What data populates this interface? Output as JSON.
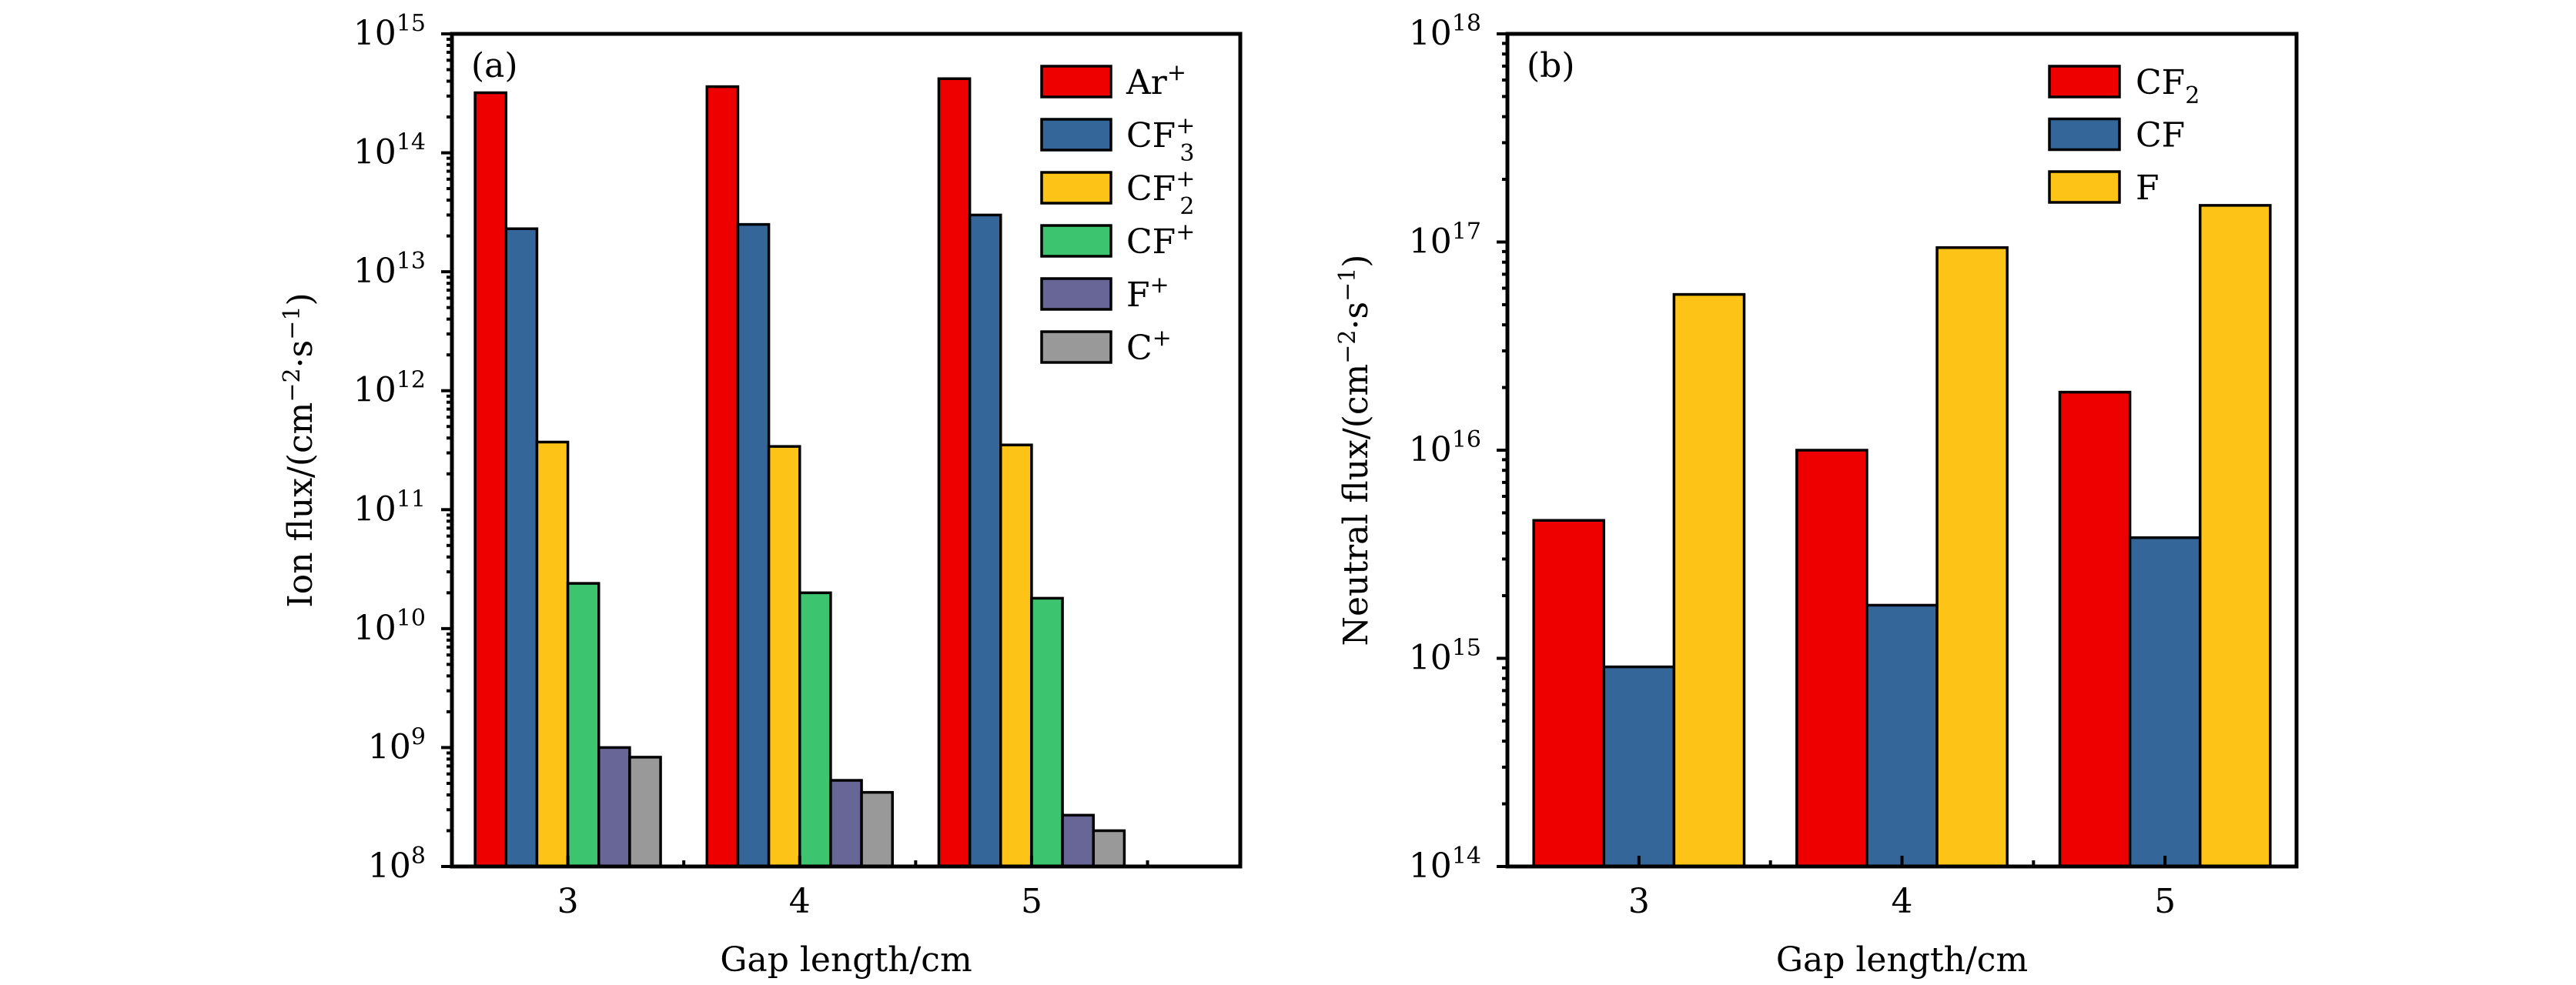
{
  "figure": {
    "panels": [
      "(a)",
      "(b)"
    ]
  },
  "chart_data": [
    {
      "type": "bar",
      "panel_tag": "(a)",
      "title": "",
      "xlabel": "Gap length/cm",
      "ylabel": "Ion flux/(cm⁻²·s⁻¹)",
      "ylabel_parts": {
        "main": "Ion flux/(cm",
        "exp1": "−2",
        "mid": "·s",
        "exp2": "−1",
        "end": ")"
      },
      "yscale": "log",
      "ylim": [
        100000000.0,
        1000000000000000.0
      ],
      "yticks": [
        {
          "base": "10",
          "exp": "8"
        },
        {
          "base": "10",
          "exp": "9"
        },
        {
          "base": "10",
          "exp": "10"
        },
        {
          "base": "10",
          "exp": "11"
        },
        {
          "base": "10",
          "exp": "12"
        },
        {
          "base": "10",
          "exp": "13"
        },
        {
          "base": "10",
          "exp": "14"
        },
        {
          "base": "10",
          "exp": "15"
        }
      ],
      "xlim": [
        2.5,
        5.9
      ],
      "categories": [
        "3",
        "4",
        "5"
      ],
      "x": [
        3,
        4,
        5
      ],
      "legend_position": "top-right",
      "series": [
        {
          "name": "Ar+",
          "label": {
            "main": "Ar",
            "sup": "+",
            "sub": ""
          },
          "color": "#EE0000",
          "values": [
            320000000000000.0,
            360000000000000.0,
            420000000000000.0
          ]
        },
        {
          "name": "CF3+",
          "label": {
            "main": "CF",
            "sup": "+",
            "sub": "3"
          },
          "color": "#346699",
          "values": [
            23000000000000.0,
            25000000000000.0,
            30000000000000.0
          ]
        },
        {
          "name": "CF2+",
          "label": {
            "main": "CF",
            "sup": "+",
            "sub": "2"
          },
          "color": "#FDC316",
          "values": [
            370000000000.0,
            340000000000.0,
            350000000000.0
          ]
        },
        {
          "name": "CF+",
          "label": {
            "main": "CF",
            "sup": "+",
            "sub": ""
          },
          "color": "#3CC46F",
          "values": [
            24000000000.0,
            20000000000.0,
            18000000000.0
          ]
        },
        {
          "name": "F+",
          "label": {
            "main": "F",
            "sup": "+",
            "sub": ""
          },
          "color": "#676697",
          "values": [
            1000000000.0,
            530000000.0,
            270000000.0
          ]
        },
        {
          "name": "C+",
          "label": {
            "main": "C",
            "sup": "+",
            "sub": ""
          },
          "color": "#999999",
          "values": [
            830000000.0,
            420000000.0,
            200000000.0
          ]
        }
      ]
    },
    {
      "type": "bar",
      "panel_tag": "(b)",
      "title": "",
      "xlabel": "Gap length/cm",
      "ylabel": "Neutral flux/(cm⁻²·s⁻¹)",
      "ylabel_parts": {
        "main": "Neutral flux/(cm",
        "exp1": "−2",
        "mid": "·s",
        "exp2": "−1",
        "end": ")"
      },
      "yscale": "log",
      "ylim": [
        100000000000000.0,
        1e+18
      ],
      "yticks": [
        {
          "base": "10",
          "exp": "14"
        },
        {
          "base": "10",
          "exp": "15"
        },
        {
          "base": "10",
          "exp": "16"
        },
        {
          "base": "10",
          "exp": "17"
        },
        {
          "base": "10",
          "exp": "18"
        }
      ],
      "xlim": [
        2.5,
        5.5
      ],
      "categories": [
        "3",
        "4",
        "5"
      ],
      "x": [
        3,
        4,
        5
      ],
      "legend_position": "top-right",
      "series": [
        {
          "name": "CF2",
          "label": {
            "main": "CF",
            "sup": "",
            "sub": "2"
          },
          "color": "#EE0000",
          "values": [
            4600000000000000.0,
            1e+16,
            1.9e+16
          ]
        },
        {
          "name": "CF",
          "label": {
            "main": "CF",
            "sup": "",
            "sub": ""
          },
          "color": "#346699",
          "values": [
            910000000000000.0,
            1800000000000000.0,
            3800000000000000.0
          ]
        },
        {
          "name": "F",
          "label": {
            "main": "F",
            "sup": "",
            "sub": ""
          },
          "color": "#FDC316",
          "values": [
            5.6e+16,
            9.4e+16,
            1.5e+17
          ]
        }
      ]
    }
  ]
}
